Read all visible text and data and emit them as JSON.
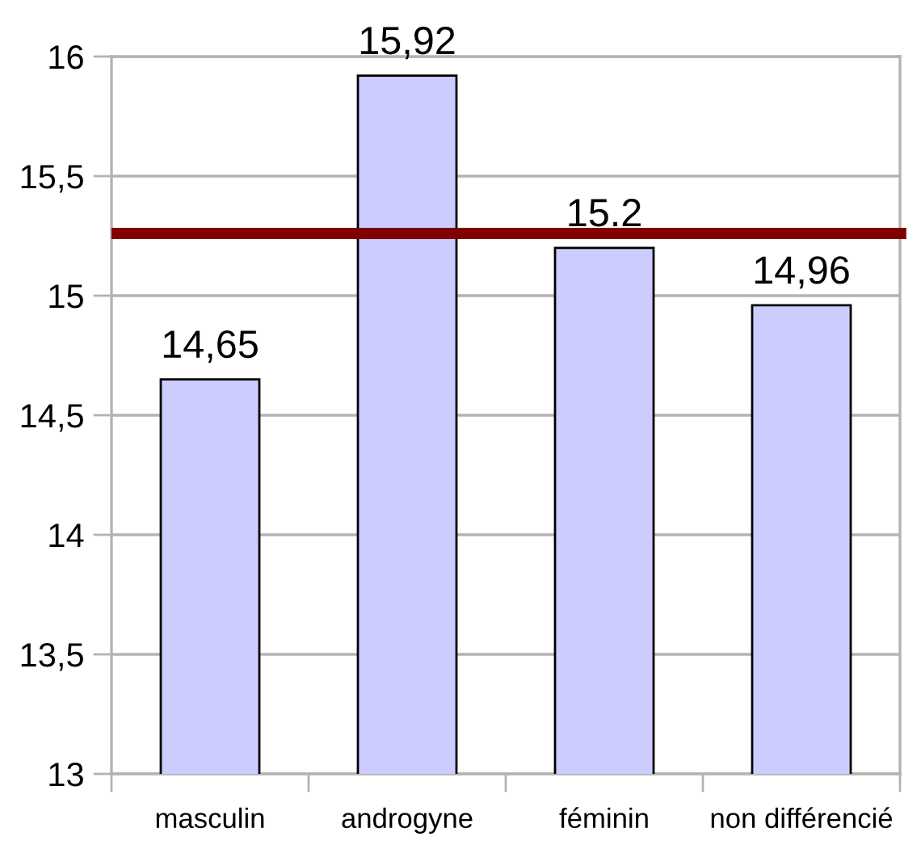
{
  "chart_data": {
    "type": "bar",
    "categories": [
      "masculin",
      "androgyne",
      "féminin",
      "non différencié"
    ],
    "values": [
      14.65,
      15.92,
      15.2,
      14.96
    ],
    "value_labels": [
      "14,65",
      "15,92",
      "15.2",
      "14,96"
    ],
    "color": "#ccccff",
    "ylim": [
      13,
      16
    ],
    "yticks": [
      13,
      {
        "value": 13.5,
        "label": "13,5"
      },
      14,
      {
        "value": 14.5,
        "label": "14,5"
      },
      15,
      {
        "value": 15.5,
        "label": "15,5"
      },
      16
    ],
    "ref_lines": [
      {
        "axis": "y",
        "value": 15.26,
        "color": "#800000"
      }
    ],
    "grid": "y",
    "legend": false
  }
}
